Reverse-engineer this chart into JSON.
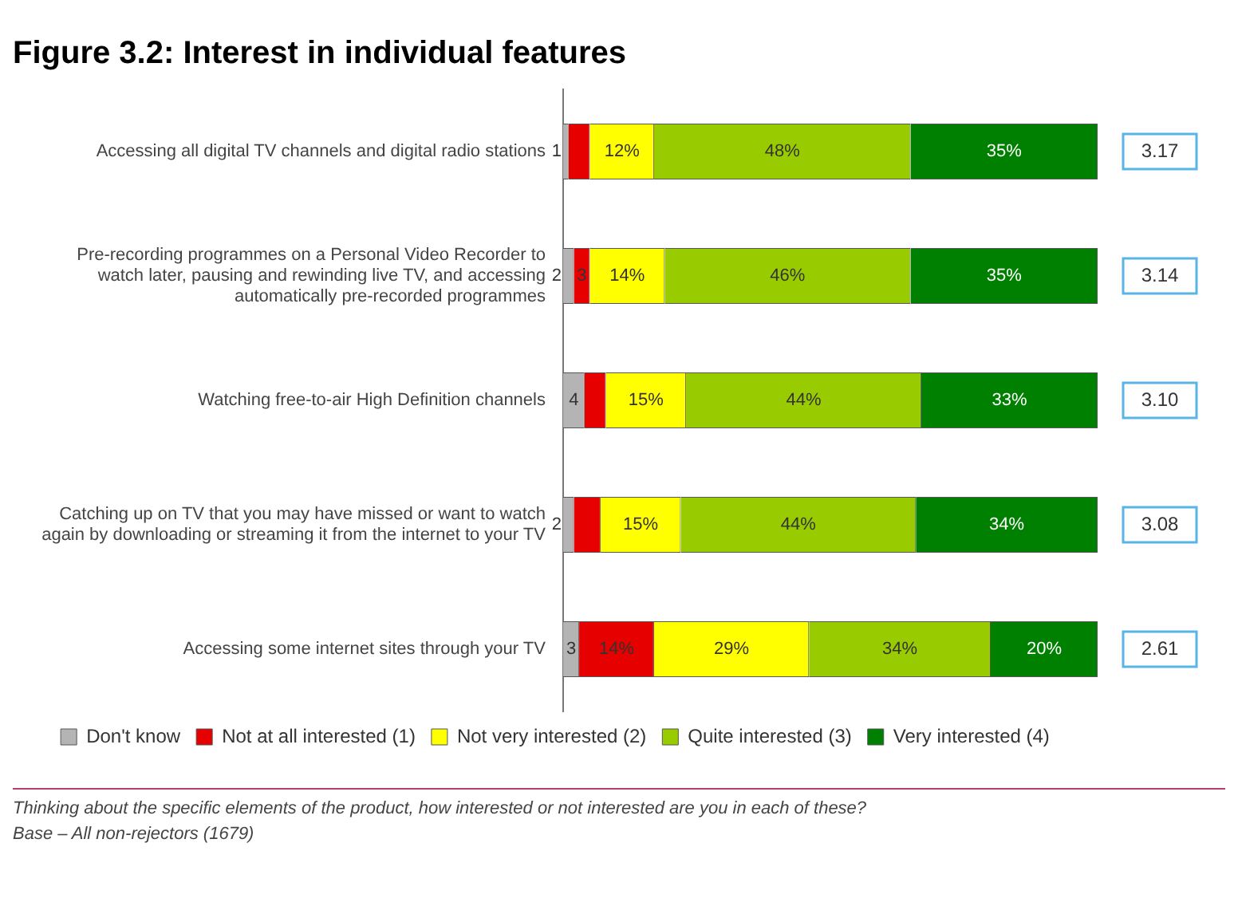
{
  "chart_data": {
    "type": "bar",
    "orientation": "horizontal",
    "stacked": true,
    "title": "Figure 3.2: Interest in individual features",
    "categories": [
      "Accessing all digital TV channels and digital radio stations",
      "Pre-recording programmes on a Personal Video Recorder to watch later, pausing and rewinding live TV, and accessing automatically pre-recorded programmes",
      "Watching free-to-air High Definition channels",
      "Catching up on TV that you may have missed or want to watch again by downloading or streaming it from the internet to your TV",
      "Accessing some internet sites through your TV"
    ],
    "series": [
      {
        "name": "Don't know",
        "color": "#b4b4b4",
        "values": [
          1,
          2,
          4,
          2,
          3
        ],
        "value_labels": [
          "1",
          "2",
          "4",
          "2",
          "3"
        ]
      },
      {
        "name": "Not at all interested (1)",
        "color": "#e60000",
        "values": [
          4,
          3,
          4,
          5,
          14
        ],
        "value_labels": [
          null,
          "3",
          null,
          null,
          "14%"
        ]
      },
      {
        "name": "Not very interested (2)",
        "color": "#ffff00",
        "values": [
          12,
          14,
          15,
          15,
          29
        ],
        "value_labels": [
          "12%",
          "14%",
          "15%",
          "15%",
          "29%"
        ]
      },
      {
        "name": "Quite interested (3)",
        "color": "#99cc00",
        "values": [
          48,
          46,
          44,
          44,
          34
        ],
        "value_labels": [
          "48%",
          "46%",
          "44%",
          "44%",
          "34%"
        ]
      },
      {
        "name": "Very interested (4)",
        "color": "#008000",
        "values": [
          35,
          35,
          33,
          34,
          20
        ],
        "value_labels": [
          "35%",
          "35%",
          "33%",
          "34%",
          "20%"
        ]
      }
    ],
    "xlim": [
      0,
      100
    ],
    "tick_labels": "y",
    "grid": false,
    "legend": "bottom",
    "annotations": [
      "3.17",
      "3.14",
      "3.10",
      "3.08",
      "2.61",
      "Thinking about the specific elements of the product, how interested or not interested are you in each of these?",
      "Base – All non-rejectors (1679)"
    ]
  }
}
